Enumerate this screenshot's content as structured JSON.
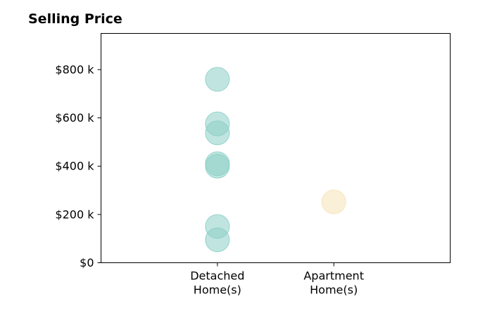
{
  "chart_data": {
    "type": "scatter",
    "title": "Selling Price",
    "xlabel": "",
    "ylabel": "",
    "categories": [
      "Detached Home(s)",
      "Apartment Home(s)"
    ],
    "category_tick_lines": [
      [
        "Detached",
        "Home(s)"
      ],
      [
        "Apartment",
        "Home(s)"
      ]
    ],
    "xlim": [
      -1,
      2
    ],
    "ylim": [
      0,
      950000
    ],
    "y_ticks": [
      0,
      200000,
      400000,
      600000,
      800000
    ],
    "y_tick_labels": [
      "$0",
      "$200 k",
      "$400 k",
      "$600 k",
      "$800 k"
    ],
    "grid": false,
    "series": [
      {
        "category": "Detached Home(s)",
        "color": "#8ccfc7",
        "values": [
          760000,
          575000,
          538000,
          410000,
          400000,
          150000,
          95000
        ]
      },
      {
        "category": "Apartment Home(s)",
        "color": "#f6e3b8",
        "values": [
          252000
        ]
      }
    ]
  }
}
